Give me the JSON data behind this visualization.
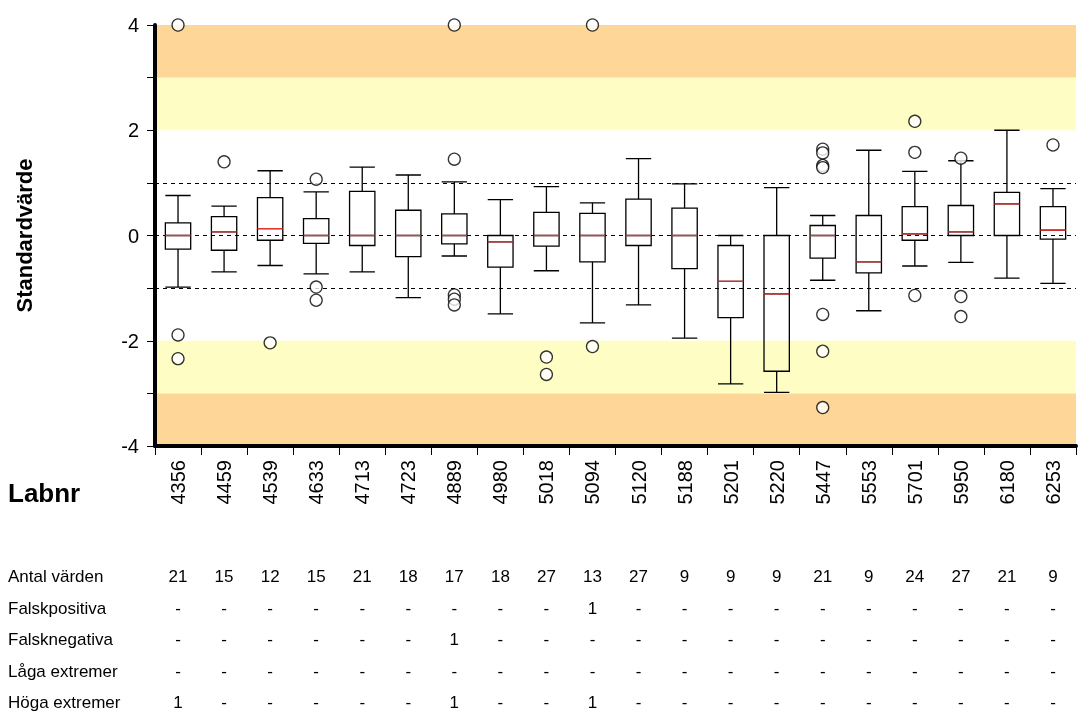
{
  "chart_data": {
    "type": "box",
    "xlabel": "Labnr",
    "ylabel": "Standardvärde",
    "color": "#000000",
    "categories": [
      "4356",
      "4459",
      "4539",
      "4633",
      "4713",
      "4723",
      "4889",
      "4980",
      "5018",
      "5094",
      "5120",
      "5188",
      "5201",
      "5220",
      "5447",
      "5553",
      "5701",
      "5950",
      "6180",
      "6253"
    ],
    "boxes": [
      {
        "low": -0.98,
        "q1": -0.26,
        "median": 0,
        "q3": 0.24,
        "high": 0.76,
        "outliers": [
          -1.89,
          -2.34,
          4
        ]
      },
      {
        "low": -0.69,
        "q1": -0.28,
        "median": 0.07,
        "q3": 0.36,
        "high": 0.56,
        "outliers": [
          1.4
        ]
      },
      {
        "low": -0.57,
        "q1": -0.09,
        "median": 0.13,
        "q3": 0.72,
        "high": 1.23,
        "outliers": [
          -2.04
        ]
      },
      {
        "low": -0.73,
        "q1": -0.15,
        "median": 0,
        "q3": 0.32,
        "high": 0.83,
        "outliers": [
          1.07,
          -0.98,
          -1.23
        ]
      },
      {
        "low": -0.69,
        "q1": -0.19,
        "median": 0,
        "q3": 0.84,
        "high": 1.3
      },
      {
        "low": -1.18,
        "q1": -0.4,
        "median": 0,
        "q3": 0.48,
        "high": 1.15
      },
      {
        "low": -0.39,
        "q1": -0.16,
        "median": 0,
        "q3": 0.41,
        "high": 1.02,
        "outliers": [
          1.45,
          -1.13,
          -1.21,
          -1.32,
          4
        ]
      },
      {
        "low": -1.49,
        "q1": -0.6,
        "median": -0.12,
        "q3": 0,
        "high": 0.68
      },
      {
        "low": -0.67,
        "q1": -0.2,
        "median": 0,
        "q3": 0.44,
        "high": 0.93,
        "outliers": [
          -2.31,
          -2.64
        ]
      },
      {
        "low": -1.66,
        "q1": -0.5,
        "median": 0,
        "q3": 0.42,
        "high": 0.62,
        "outliers": [
          -2.11,
          4
        ]
      },
      {
        "low": -1.32,
        "q1": -0.19,
        "median": 0,
        "q3": 0.69,
        "high": 1.46
      },
      {
        "low": -1.95,
        "q1": -0.63,
        "median": 0,
        "q3": 0.52,
        "high": 0.98
      },
      {
        "low": -2.82,
        "q1": -1.56,
        "median": -0.87,
        "q3": -0.19,
        "high": 0
      },
      {
        "low": -2.98,
        "q1": -2.58,
        "median": -1.11,
        "q3": 0,
        "high": 0.91
      },
      {
        "low": -0.85,
        "q1": -0.43,
        "median": 0,
        "q3": 0.19,
        "high": 0.38,
        "outliers": [
          1.64,
          1.57,
          1.33,
          1.29,
          -1.5,
          -2.2,
          -3.27
        ]
      },
      {
        "low": -1.43,
        "q1": -0.71,
        "median": -0.5,
        "q3": 0.38,
        "high": 1.62
      },
      {
        "low": -0.58,
        "q1": -0.09,
        "median": 0.03,
        "q3": 0.55,
        "high": 1.22,
        "outliers": [
          2.17,
          1.58,
          -1.14
        ]
      },
      {
        "low": -0.51,
        "q1": 0,
        "median": 0.07,
        "q3": 0.57,
        "high": 1.42,
        "outliers": [
          1.47,
          -1.16,
          -1.54
        ]
      },
      {
        "low": -0.81,
        "q1": 0,
        "median": 0.6,
        "q3": 0.82,
        "high": 2.0
      },
      {
        "low": -0.91,
        "q1": -0.07,
        "median": 0.1,
        "q3": 0.55,
        "high": 0.89,
        "outliers": [
          1.72
        ]
      }
    ],
    "ylim": [
      -4,
      4
    ],
    "yticks": [
      -4,
      {
        "value": -3,
        "label": null
      },
      -2,
      {
        "value": -1,
        "label": null
      },
      0,
      {
        "value": 1,
        "label": null
      },
      2,
      {
        "value": 3,
        "label": null
      },
      4
    ],
    "grid": false,
    "bands": [
      {
        "axis": "y",
        "from": 3,
        "to": 4,
        "color": "#fdd698"
      },
      {
        "axis": "y",
        "from": 2,
        "to": 3,
        "color": "#fefec4"
      },
      {
        "axis": "y",
        "from": -3,
        "to": -2,
        "color": "#fefec4"
      },
      {
        "axis": "y",
        "from": -4,
        "to": -3,
        "color": "#fdd698"
      }
    ],
    "ref_lines": [
      {
        "axis": "y",
        "value": 1,
        "line_style": "dashed",
        "color": "#000000"
      },
      {
        "axis": "y",
        "value": 0,
        "line_style": "dashed",
        "color": "#000000"
      },
      {
        "axis": "y",
        "value": -1,
        "line_style": "dashed",
        "color": "#000000"
      }
    ],
    "annotations": [
      "Antal värden",
      "21",
      "15",
      "12",
      "15",
      "21",
      "18",
      "17",
      "18",
      "27",
      "13",
      "27",
      "9",
      "9",
      "9",
      "21",
      "9",
      "24",
      "27",
      "21",
      "9",
      "Falskpositiva",
      "-",
      "-",
      "-",
      "-",
      "-",
      "-",
      "-",
      "-",
      "-",
      "1",
      "-",
      "-",
      "-",
      "-",
      "-",
      "-",
      "-",
      "-",
      "-",
      "-",
      "Falsknegativa",
      "-",
      "-",
      "-",
      "-",
      "-",
      "-",
      "1",
      "-",
      "-",
      "-",
      "-",
      "-",
      "-",
      "-",
      "-",
      "-",
      "-",
      "-",
      "-",
      "-",
      "Låga extremer",
      "-",
      "-",
      "-",
      "-",
      "-",
      "-",
      "-",
      "-",
      "-",
      "-",
      "-",
      "-",
      "-",
      "-",
      "-",
      "-",
      "-",
      "-",
      "-",
      "-",
      "Höga extremer",
      "1",
      "-",
      "-",
      "-",
      "-",
      "-",
      "1",
      "-",
      "-",
      "1",
      "-",
      "-",
      "-",
      "-",
      "-",
      "-",
      "-",
      "-",
      "-",
      "-"
    ]
  }
}
